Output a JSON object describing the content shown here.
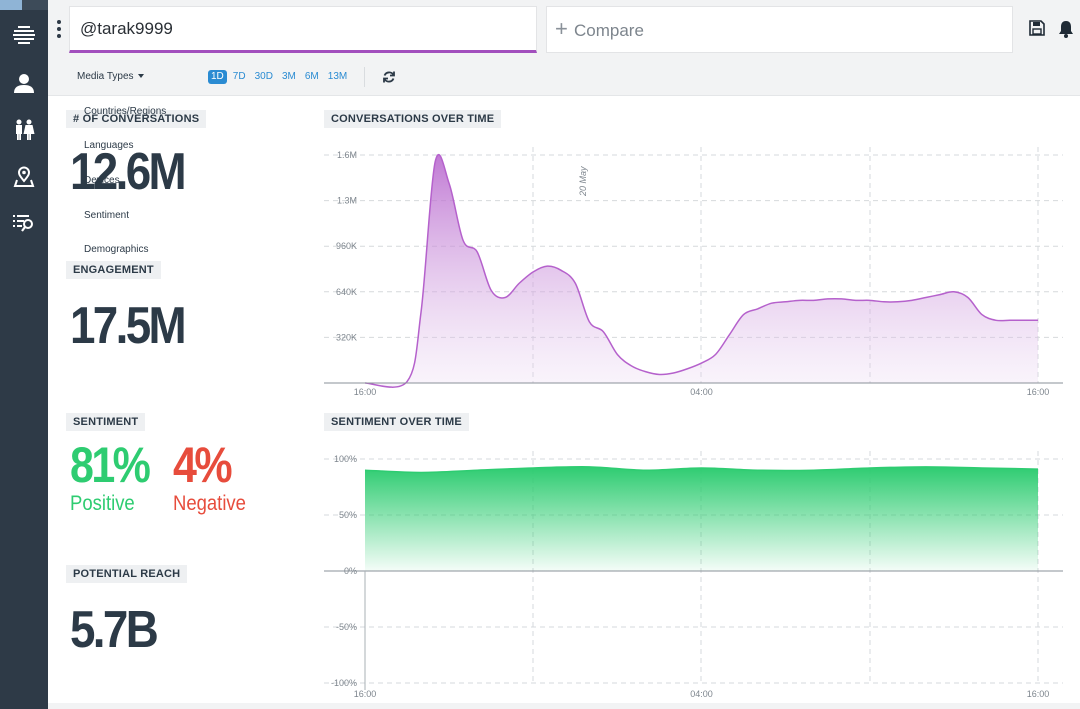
{
  "search": {
    "value": "@tarak9999"
  },
  "compare": {
    "label": "Compare"
  },
  "sidebar": {
    "items": [
      {
        "icon": "stream-icon"
      },
      {
        "icon": "user-icon"
      },
      {
        "icon": "people-icon"
      },
      {
        "icon": "location-pin-icon"
      },
      {
        "icon": "search-list-icon"
      }
    ]
  },
  "toolbar": {
    "media_types": "Media Types",
    "ranges": [
      "1D",
      "7D",
      "30D",
      "3M",
      "6M",
      "13M"
    ],
    "active_range": "1D"
  },
  "dropdown": {
    "items": [
      "Countries/Regions",
      "Languages",
      "Devices",
      "Sentiment",
      "Demographics"
    ]
  },
  "stats": {
    "conversations": {
      "label": "# OF CONVERSATIONS",
      "value": "12.6M"
    },
    "engagement": {
      "label": "ENGAGEMENT",
      "value": "17.5M"
    },
    "sentiment": {
      "label": "SENTIMENT",
      "positive_value": "81%",
      "positive_label": "Positive",
      "negative_value": "4%",
      "negative_label": "Negative"
    },
    "reach": {
      "label": "POTENTIAL REACH",
      "value": "5.7B"
    }
  },
  "colors": {
    "accent": "#a24fbd",
    "positive": "#2ecc71",
    "negative": "#e74c3c",
    "sidebar": "#2e3a47"
  },
  "chart_data": [
    {
      "type": "area",
      "title": "CONVERSATIONS OVER TIME",
      "y_ticks": [
        "1.6M",
        "1.3M",
        "960K",
        "640K",
        "320K"
      ],
      "y_tick_values": [
        1600000,
        1280000,
        960000,
        640000,
        320000
      ],
      "x_ticks": [
        "16:00",
        "04:00",
        "16:00"
      ],
      "annotation": "20 May",
      "ylim": [
        0,
        1600000
      ],
      "x": [
        0,
        1.5,
        2,
        2.5,
        3,
        3.5,
        4,
        4.5,
        5,
        5.5,
        6,
        6.5,
        7,
        7.5,
        8,
        8.5,
        9,
        9.5,
        10,
        10.5,
        11,
        11.5,
        12,
        12.5,
        13,
        13.5,
        14,
        14.5,
        15,
        15.5,
        16,
        16.5,
        17,
        17.5,
        18,
        18.5,
        19,
        19.5,
        20,
        20.5,
        21,
        21.5,
        22,
        22.5,
        23,
        23.5,
        24
      ],
      "values": [
        0,
        10000,
        500000,
        1550000,
        1400000,
        1000000,
        920000,
        650000,
        600000,
        700000,
        780000,
        820000,
        790000,
        700000,
        430000,
        360000,
        200000,
        120000,
        80000,
        60000,
        70000,
        100000,
        140000,
        200000,
        340000,
        480000,
        520000,
        560000,
        570000,
        580000,
        580000,
        590000,
        590000,
        580000,
        580000,
        570000,
        570000,
        580000,
        600000,
        620000,
        640000,
        600000,
        480000,
        440000,
        440000,
        440000,
        440000
      ]
    },
    {
      "type": "area",
      "title": "SENTIMENT OVER TIME",
      "y_ticks": [
        "100%",
        "50%",
        "0%",
        "-50%",
        "-100%"
      ],
      "y_tick_values": [
        100,
        50,
        0,
        -50,
        -100
      ],
      "x_ticks": [
        "16:00",
        "04:00",
        "16:00"
      ],
      "ylim": [
        -100,
        100
      ],
      "x": [
        0,
        2,
        4,
        6,
        8,
        10,
        12,
        14,
        16,
        18,
        20,
        22,
        24
      ],
      "values": [
        90,
        88,
        90,
        92,
        93,
        90,
        92,
        90,
        90,
        92,
        93,
        92,
        91
      ]
    }
  ]
}
